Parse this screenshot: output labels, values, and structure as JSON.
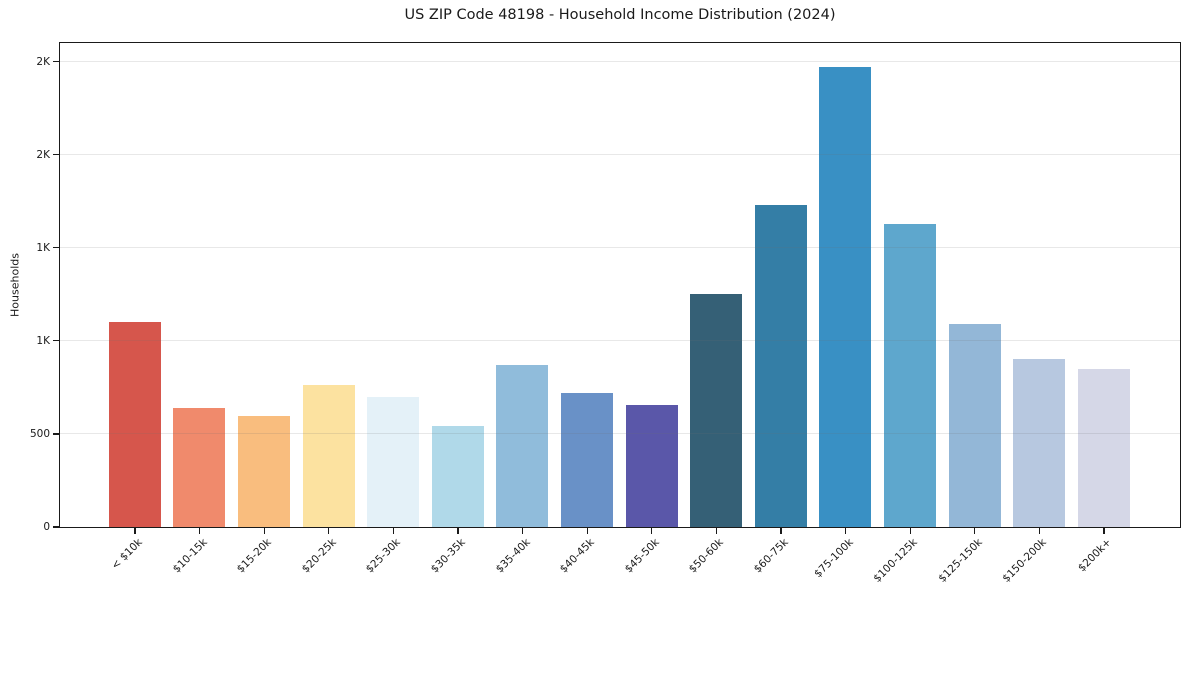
{
  "chart_data": {
    "type": "bar",
    "title": "US ZIP Code 48198 - Household Income Distribution (2024)",
    "xlabel": "",
    "ylabel": "Households",
    "categories": [
      "< $10k",
      "$10-15k",
      "$15-20k",
      "$20-25k",
      "$25-30k",
      "$30-35k",
      "$35-40k",
      "$40-45k",
      "$45-50k",
      "$50-60k",
      "$60-75k",
      "$75-100k",
      "$100-125k",
      "$125-150k",
      "$150-200k",
      "$200k+"
    ],
    "values": [
      1100,
      640,
      595,
      760,
      700,
      540,
      870,
      720,
      655,
      1250,
      1730,
      2470,
      1625,
      1090,
      900,
      850
    ],
    "bar_colors": [
      "#d6564c",
      "#f08a6c",
      "#f9bd7e",
      "#fce2a0",
      "#e4f1f8",
      "#b0d9e9",
      "#90bcdb",
      "#6991c7",
      "#5a57a9",
      "#356076",
      "#347ea6",
      "#3990c4",
      "#5ea7cd",
      "#93b7d7",
      "#b7c8e0",
      "#d5d7e7"
    ],
    "ylim": [
      0,
      2600
    ],
    "yticks": {
      "values": [
        0,
        500,
        1000,
        1500,
        2000,
        2500
      ],
      "labels": [
        "0",
        "500",
        "1K",
        "1K",
        "2K",
        "2K"
      ]
    },
    "grid": "horizontal-only",
    "legend": "none",
    "background_color": "#ffffff",
    "spine_color": "#1a1a1a",
    "grid_color": "#e9e9e9",
    "text_color": "#1a1a1a"
  }
}
